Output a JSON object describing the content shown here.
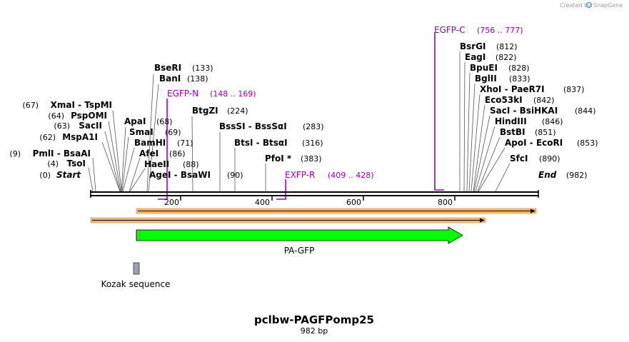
{
  "brand": {
    "created_by": "Created by",
    "name": "SnapGene"
  },
  "title": "pclbw-PAGFPomp25",
  "length": "982 bp",
  "axis_ticks": [
    "200",
    "400",
    "600",
    "800"
  ],
  "start_label": "Start",
  "start_pos": "(0)",
  "end_label": "End",
  "end_pos": "(982)",
  "enzymes_left": [
    {
      "name": "XmaI",
      "name2": "TspMI",
      "pos": "(67)"
    },
    {
      "name": "PspOMI",
      "pos": "(64)"
    },
    {
      "name": "SacII",
      "pos": "(63)"
    },
    {
      "name": "MspA1I",
      "pos": "(62)"
    },
    {
      "name": "PmlI",
      "name2": "BsaAI",
      "pos": "(9)"
    },
    {
      "name": "TsoI",
      "pos": "(4)"
    }
  ],
  "enzymes_right": [
    {
      "name": "BseRI",
      "pos": "(133)"
    },
    {
      "name": "BanI",
      "pos": "(138)"
    },
    {
      "name": "ApaI",
      "pos": "(68)"
    },
    {
      "name": "SmaI",
      "pos": "(69)"
    },
    {
      "name": "BamHI",
      "pos": "(71)"
    },
    {
      "name": "AfeI",
      "pos": "(86)"
    },
    {
      "name": "HaeII",
      "pos": "(88)"
    },
    {
      "name": "AgeI",
      "name2": "BsaWI",
      "pos": "(90)"
    },
    {
      "name": "BtgZI",
      "pos": "(224)"
    },
    {
      "name": "BssSI",
      "name2": "BssSαI",
      "pos": "(283)"
    },
    {
      "name": "BtsI",
      "name2": "BtsαI",
      "pos": "(316)"
    },
    {
      "name": "PfoI *",
      "pos": "(383)"
    },
    {
      "name": "BsrGI",
      "pos": "(812)"
    },
    {
      "name": "EagI",
      "pos": "(822)"
    },
    {
      "name": "BpuEI",
      "pos": "(828)"
    },
    {
      "name": "BglII",
      "pos": "(833)"
    },
    {
      "name": "XhoI",
      "name2": "PaeR7I",
      "pos": "(837)"
    },
    {
      "name": "Eco53kI",
      "pos": "(842)"
    },
    {
      "name": "SacI",
      "name2": "BsiHKAI",
      "pos": "(844)"
    },
    {
      "name": "HindIII",
      "pos": "(846)"
    },
    {
      "name": "BstBI",
      "pos": "(851)"
    },
    {
      "name": "ApoI",
      "name2": "EcoRI",
      "pos": "(853)"
    },
    {
      "name": "SfcI",
      "pos": "(890)"
    }
  ],
  "primers": [
    {
      "name": "EGFP-N",
      "range": "(148 .. 169)"
    },
    {
      "name": "EXFP-R",
      "range": "(409 .. 428)"
    },
    {
      "name": "EGFP-C",
      "range": "(756 .. 777)"
    }
  ],
  "features": {
    "pa_gfp": "PA-GFP",
    "kozak": "Kozak sequence"
  },
  "colors": {
    "primer": "#a000c8",
    "feature": "#00ff00",
    "bar": "#f5b46a"
  }
}
